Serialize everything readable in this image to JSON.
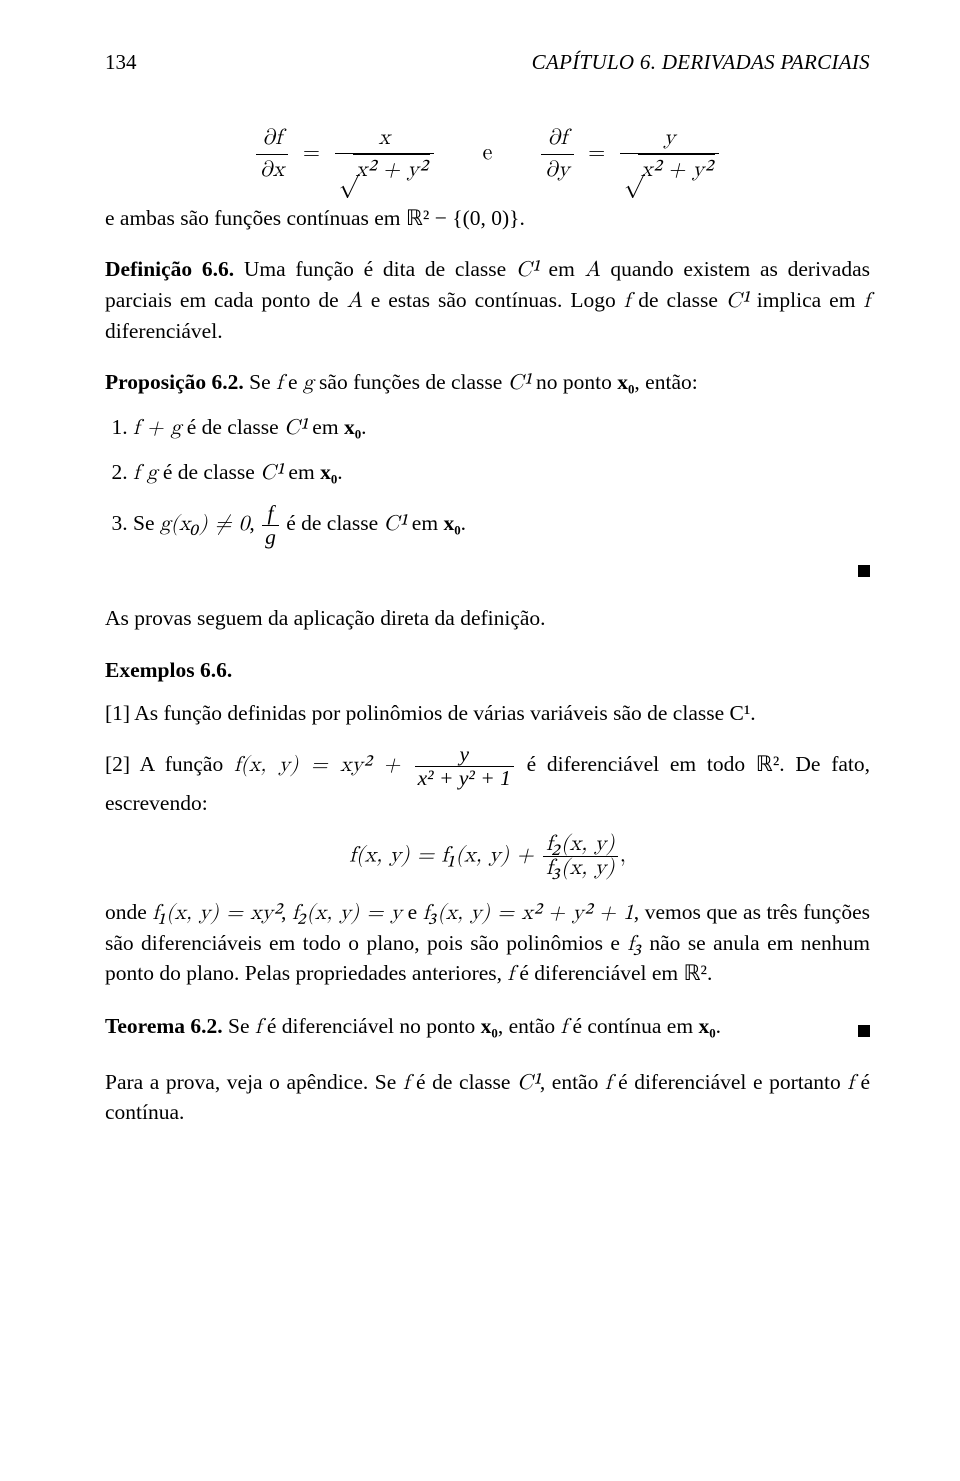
{
  "header": {
    "page_number": "134",
    "chapter_label": "CAPÍTULO 6. DERIVADAS PARCIAIS"
  },
  "eq1": {
    "dfx_lhs_top": "∂f",
    "dfx_lhs_bot": "∂x",
    "dfx_rhs_top": "x",
    "dfx_rhs_bot_rad": "x² + y²",
    "conj": "e",
    "dfy_lhs_top": "∂f",
    "dfy_lhs_bot": "∂y",
    "dfy_rhs_top": "y",
    "dfy_rhs_bot_rad": "x² + y²"
  },
  "p1": "e ambas são funções contínuas em ℝ² − {(0, 0)}.",
  "def": {
    "label": "Definição 6.6.",
    "text_a": " Uma função é dita de classe ",
    "c1": "C¹",
    "text_b": " em ",
    "A": "A",
    "text_c": " quando existem as derivadas parciais em cada ponto de ",
    "text_d": " e estas são contínuas. Logo ",
    "f": "f",
    "text_e": " de classe ",
    "text_f": " implica em ",
    "text_g": " diferenciável."
  },
  "prop": {
    "label": "Proposição 6.2.",
    "intro_a": " Se ",
    "f": "f",
    "intro_b": " e ",
    "g": "g",
    "intro_c": " são funções de classe ",
    "c1": "C¹",
    "intro_d": " no ponto ",
    "x0": "x₀",
    "intro_e": ", então:",
    "item1_a": "f + g",
    "item_mid": " é de classe ",
    "item1_b": " em ",
    "period": ".",
    "item2_a": "f g",
    "item3_a": "Se ",
    "item3_b": "g(x₀) ≠ 0",
    "item3_c": ", ",
    "frac_top": "f",
    "frac_bot": "g"
  },
  "p_after_prop": "As provas seguem da aplicação direta da definição.",
  "examples": {
    "label": "Exemplos 6.6.",
    "ex1": "[1] As função definidas por polinômios de várias variáveis são de classe C¹.",
    "ex2_a": "[2] A função ",
    "ex2_func": "f(x, y) = xy² + ",
    "ex2_frac_top": "y",
    "ex2_frac_bot": "x² + y² + 1",
    "ex2_b": " é diferenciável em todo ℝ². De fato, escrevendo:"
  },
  "eq2": {
    "lhs": "f(x, y) = f₁(x, y) + ",
    "frac_top": "f₂(x, y)",
    "frac_bot": "f₃(x, y)",
    "tail": ","
  },
  "p_onde_a": "onde ",
  "p_onde_f1": "f₁(x, y) = xy²",
  "p_onde_b": ", ",
  "p_onde_f2": "f₂(x, y) = y",
  "p_onde_c": " e ",
  "p_onde_f3": "f₃(x, y) = x² + y² + 1",
  "p_onde_d": ", vemos que as três funções são diferenciáveis em todo o plano, pois são polinômios e ",
  "p_onde_f3s": "f₃",
  "p_onde_e": " não se anula em nenhum ponto do plano. Pelas propriedades anteriores, ",
  "p_onde_f": "f",
  "p_onde_g": " é diferenciável em ℝ².",
  "theorem": {
    "label": "Teorema 6.2.",
    "text_a": " Se ",
    "f": "f",
    "text_b": " é diferenciável no ponto ",
    "x0": "x₀",
    "text_c": ", então ",
    "text_d": " é contínua em ",
    "period": "."
  },
  "p_last_a": "Para a prova, veja o apêndice. Se ",
  "p_last_b": " é de classe ",
  "p_last_c": ", então ",
  "p_last_d": " é diferenciável e portanto ",
  "p_last_e": " é contínua."
}
